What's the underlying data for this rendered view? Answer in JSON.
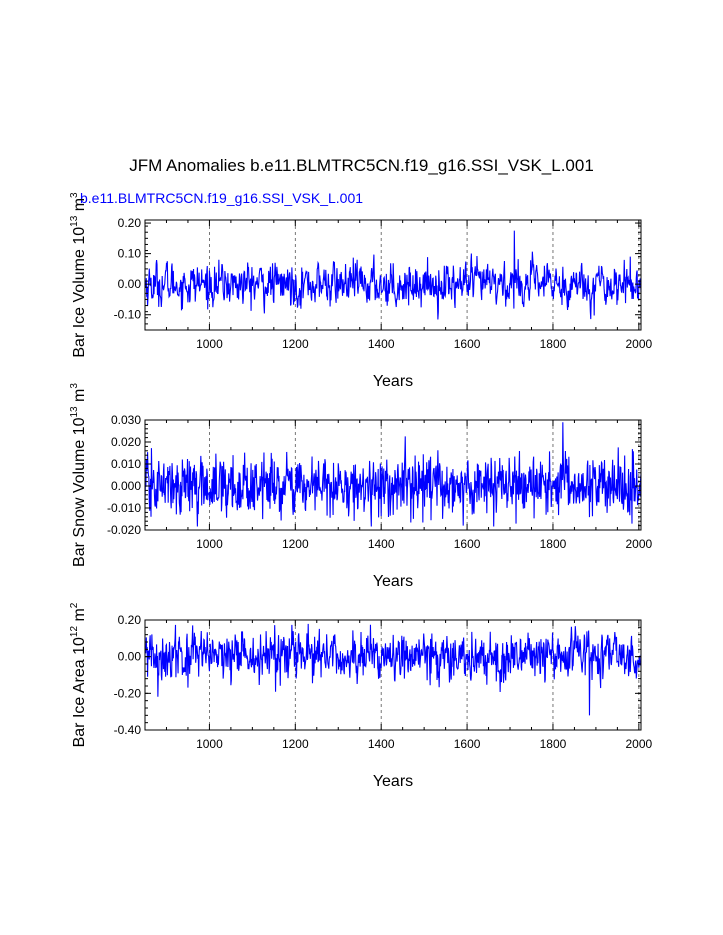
{
  "title": "JFM Anomalies b.e11.BLMTRC5CN.f19_g16.SSI_VSK_L.001",
  "subtitle": "b.e11.BLMTRC5CN.f19_g16.SSI_VSK_L.001",
  "colors": {
    "series": "#0000ff",
    "grid": "#555555",
    "axis": "#000000"
  },
  "chart_data": [
    {
      "type": "line",
      "ylabel": "Bar Ice Volume 10^13 m^3",
      "ylabel_main": "Bar Ice Volume 10",
      "ylabel_exp1": "13",
      "ylabel_mid": " m",
      "ylabel_exp2": "3",
      "xlabel": "Years",
      "xlim": [
        850,
        2005
      ],
      "ylim": [
        -0.15,
        0.21
      ],
      "xticks": [
        1000,
        1200,
        1400,
        1600,
        1800,
        2000
      ],
      "yticks": [
        -0.1,
        0.0,
        0.1,
        0.2
      ],
      "ytick_labels": [
        "-0.10",
        "0.00",
        "0.10",
        "0.20"
      ],
      "gridlines_x": [
        1000,
        1200,
        1400,
        1600,
        1800,
        2000
      ],
      "series": [
        {
          "std": 0.035,
          "extreme": {
            "x": 1710,
            "y": 0.175
          },
          "lag": 0.45
        }
      ]
    },
    {
      "type": "line",
      "ylabel": "Bar Snow Volume 10^13 m^3",
      "ylabel_main": "Bar Snow Volume 10",
      "ylabel_exp1": "13",
      "ylabel_mid": " m",
      "ylabel_exp2": "3",
      "xlabel": "Years",
      "xlim": [
        850,
        2005
      ],
      "ylim": [
        -0.02,
        0.03
      ],
      "xticks": [
        1000,
        1200,
        1400,
        1600,
        1800,
        2000
      ],
      "yticks": [
        -0.02,
        -0.01,
        0.0,
        0.01,
        0.02,
        0.03
      ],
      "ytick_labels": [
        "-0.020",
        "-0.010",
        "0.000",
        "0.010",
        "0.020",
        "0.030"
      ],
      "gridlines_x": [
        1000,
        1200,
        1400,
        1600,
        1800,
        2000
      ],
      "series": [
        {
          "std": 0.0065,
          "extreme": {
            "x": 1823,
            "y": 0.029
          },
          "lag": 0.1
        }
      ]
    },
    {
      "type": "line",
      "ylabel": "Bar Ice Area 10^12 m^2",
      "ylabel_main": "Bar Ice Area 10",
      "ylabel_exp1": "12",
      "ylabel_mid": " m",
      "ylabel_exp2": "2",
      "xlabel": "Years",
      "xlim": [
        850,
        2005
      ],
      "ylim": [
        -0.4,
        0.2
      ],
      "xticks": [
        1000,
        1200,
        1400,
        1600,
        1800,
        2000
      ],
      "yticks": [
        -0.4,
        -0.2,
        0.0,
        0.2
      ],
      "ytick_labels": [
        "-0.40",
        "-0.20",
        "0.00",
        "0.20"
      ],
      "gridlines_x": [
        1000,
        1200,
        1400,
        1600,
        1800,
        2000
      ],
      "series": [
        {
          "std": 0.065,
          "extreme": {
            "x": 1885,
            "y": -0.32
          },
          "lag": 0.3
        }
      ]
    }
  ]
}
